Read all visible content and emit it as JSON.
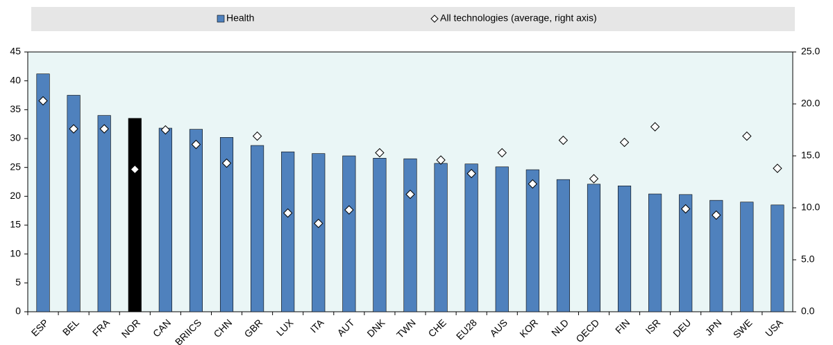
{
  "chart_data": {
    "type": "bar",
    "categories": [
      "ESP",
      "BEL",
      "FRA",
      "NOR",
      "CAN",
      "BRIICS",
      "CHN",
      "GBR",
      "LUX",
      "ITA",
      "AUT",
      "DNK",
      "TWN",
      "CHE",
      "EU28",
      "AUS",
      "KOR",
      "NLD",
      "OECD",
      "FIN",
      "ISR",
      "DEU",
      "JPN",
      "SWE",
      "USA"
    ],
    "series": [
      {
        "name": "Health",
        "color": "#4f81bd",
        "colors": [
          "#4f81bd",
          "#4f81bd",
          "#4f81bd",
          "#000000",
          "#4f81bd",
          "#4f81bd",
          "#4f81bd",
          "#4f81bd",
          "#4f81bd",
          "#4f81bd",
          "#4f81bd",
          "#4f81bd",
          "#4f81bd",
          "#4f81bd",
          "#4f81bd",
          "#4f81bd",
          "#4f81bd",
          "#4f81bd",
          "#4f81bd",
          "#4f81bd",
          "#4f81bd",
          "#4f81bd",
          "#4f81bd",
          "#4f81bd",
          "#4f81bd"
        ],
        "values": [
          41.2,
          37.5,
          34.0,
          33.5,
          31.8,
          31.6,
          30.2,
          28.8,
          27.7,
          27.4,
          27.0,
          26.6,
          26.5,
          25.7,
          25.6,
          25.1,
          24.6,
          22.9,
          22.1,
          21.8,
          20.4,
          20.3,
          19.3,
          19.0,
          18.5
        ]
      },
      {
        "name": "All technologies (average, right axis)",
        "color": "#ffffff",
        "marker": "diamond",
        "axis": "y2",
        "values": [
          20.3,
          17.6,
          17.6,
          13.7,
          17.5,
          16.1,
          14.3,
          16.9,
          9.5,
          8.5,
          9.8,
          15.3,
          11.3,
          14.6,
          13.3,
          15.3,
          12.3,
          16.5,
          12.8,
          16.3,
          17.8,
          9.9,
          9.3,
          16.9,
          13.8
        ]
      }
    ],
    "ylim": [
      0,
      45
    ],
    "yticks": [
      0,
      5,
      10,
      15,
      20,
      25,
      30,
      35,
      40,
      45
    ],
    "y2lim": [
      0,
      25
    ],
    "y2ticks": [
      {
        "value": 0,
        "label": "0.0"
      },
      {
        "value": 5,
        "label": "5.0"
      },
      {
        "value": 10,
        "label": "10.0"
      },
      {
        "value": 15,
        "label": "15.0"
      },
      {
        "value": 20,
        "label": "20.0"
      },
      {
        "value": 25,
        "label": "25.0"
      }
    ],
    "legend": "top"
  }
}
